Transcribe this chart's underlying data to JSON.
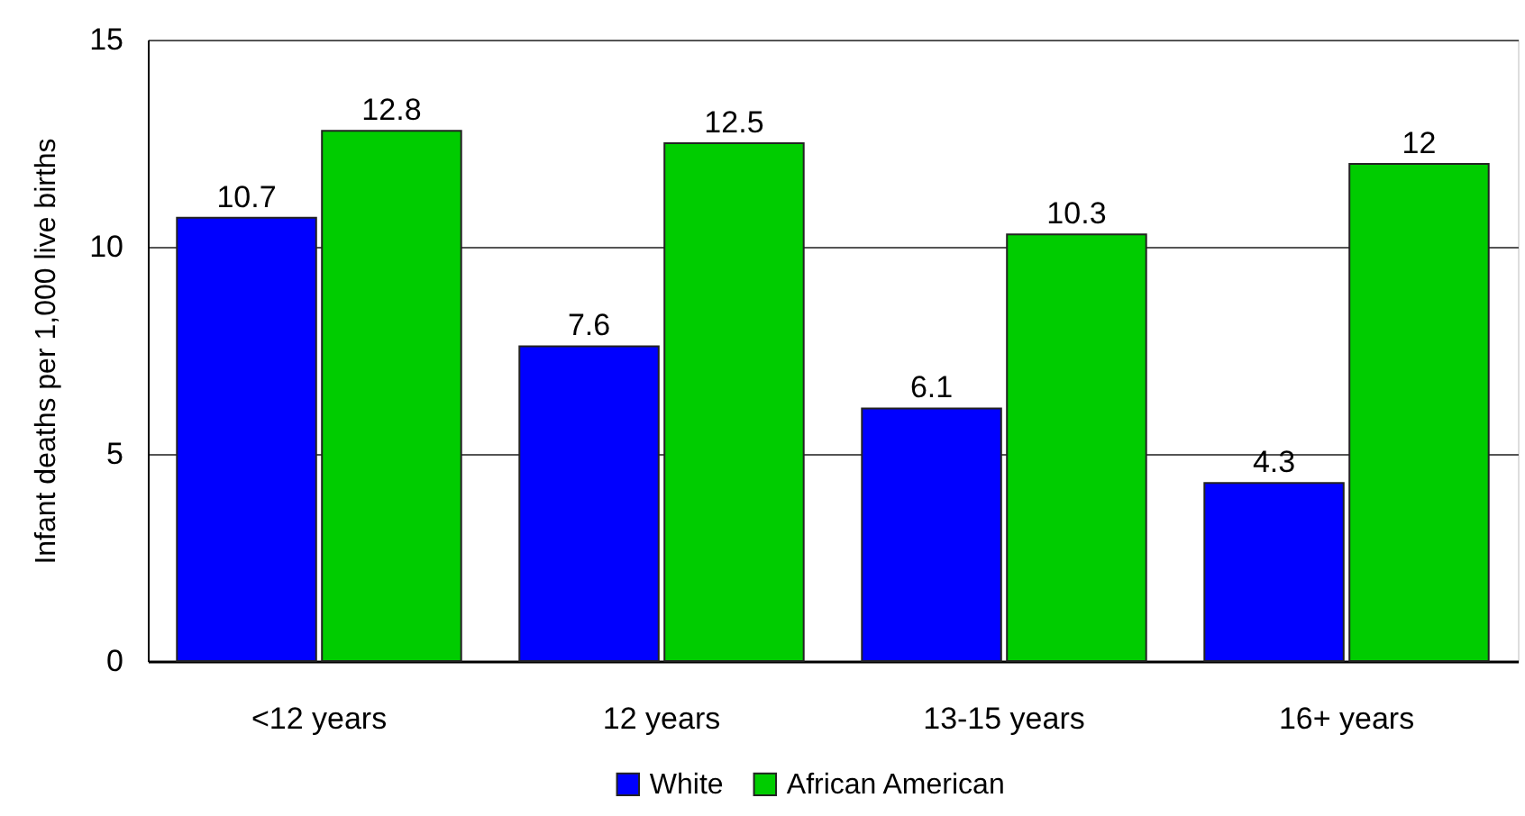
{
  "chart_data": {
    "type": "bar",
    "ylabel": "Infant deaths per 1,000 live births",
    "categories": [
      "<12 years",
      "12 years",
      "13-15 years",
      "16+ years"
    ],
    "series": [
      {
        "name": "White",
        "color": "#0000ff",
        "values": [
          10.7,
          7.6,
          6.1,
          4.3
        ]
      },
      {
        "name": "African American",
        "color": "#00cc00",
        "values": [
          12.8,
          12.5,
          10.3,
          12
        ]
      }
    ],
    "ylim": [
      0,
      15
    ],
    "yticks": [
      0,
      5,
      10,
      15
    ],
    "grid": "y",
    "legend": "bottom",
    "data_labels": true
  }
}
